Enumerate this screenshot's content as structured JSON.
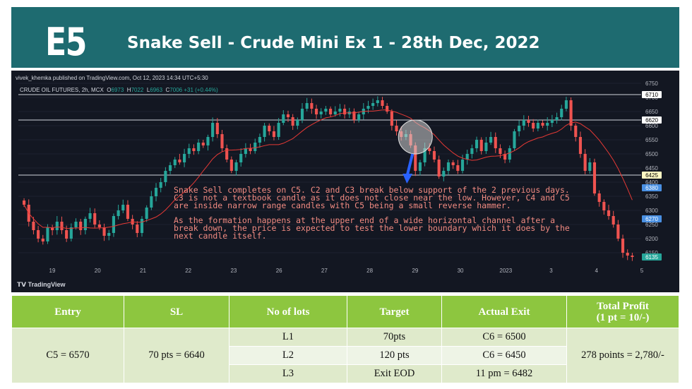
{
  "header": {
    "logo": "E5",
    "title": "Snake Sell - Crude Mini Ex 1 - 28th Dec, 2022"
  },
  "chart_header": {
    "published": "vivek_khemka published on TradingView.com, Oct 12, 2023 14:34 UTC+5:30",
    "symbol": "CRUDE OIL FUTURES, 2h, MCX",
    "o_label": "O",
    "o": "6973",
    "h_label": "H",
    "h": "7022",
    "l_label": "L",
    "l": "6963",
    "c_label": "C",
    "c": "7006",
    "change": "+31 (+0.44%)",
    "brand": "TradingView"
  },
  "annotation": {
    "p1": "Snake Sell completes on C5. C2 and C3 break below support of the 2 previous days. C3 is not a textbook candle as it does not close near the low. However, C4 and C5 are inside narrow range candles with C5 being a small reverse hammer.",
    "p2": "As the formation happens at the upper end of a wide horizontal channel after a break down, the price is expected to test the lower boundary which it does by the next candle itself."
  },
  "chart_data": {
    "type": "candlestick",
    "ylim": [
      6100,
      6770
    ],
    "x_ticks": [
      "19",
      "20",
      "21",
      "22",
      "23",
      "26",
      "27",
      "28",
      "29",
      "30",
      "2023",
      "3",
      "4",
      "5"
    ],
    "y_ticks": [
      6150,
      6200,
      6250,
      6300,
      6350,
      6400,
      6450,
      6500,
      6550,
      6600,
      6650,
      6700,
      6750
    ],
    "price_labels": [
      {
        "value": 6710,
        "text": "6710",
        "bg": "#ffffff",
        "fg": "#000000"
      },
      {
        "value": 6620,
        "text": "6620",
        "bg": "#ffffff",
        "fg": "#000000"
      },
      {
        "value": 6425,
        "text": "6425",
        "bg": "#fff9c4",
        "fg": "#000000"
      },
      {
        "value": 6380,
        "text": "6380",
        "bg": "#4a90e2",
        "fg": "#ffffff"
      },
      {
        "value": 6270,
        "text": "6270",
        "bg": "#4a90e2",
        "fg": "#ffffff"
      },
      {
        "value": 6135,
        "text": "6135",
        "bg": "#26a69a",
        "fg": "#ffffff"
      }
    ],
    "hlines": [
      6710,
      6620,
      6425
    ],
    "colors": {
      "up": "#26a69a",
      "down": "#ef5350",
      "ma": "#e53935",
      "hline": "#d1d4dc",
      "arrow": "#2962ff"
    },
    "closes": [
      6320,
      6260,
      6230,
      6200,
      6190,
      6240,
      6230,
      6260,
      6230,
      6200,
      6240,
      6260,
      6230,
      6270,
      6290,
      6250,
      6240,
      6210,
      6220,
      6280,
      6300,
      6320,
      6270,
      6250,
      6220,
      6270,
      6310,
      6350,
      6380,
      6400,
      6440,
      6460,
      6480,
      6470,
      6500,
      6520,
      6510,
      6540,
      6530,
      6560,
      6610,
      6570,
      6520,
      6480,
      6440,
      6470,
      6500,
      6520,
      6510,
      6540,
      6560,
      6600,
      6580,
      6560,
      6610,
      6640,
      6630,
      6600,
      6620,
      6660,
      6680,
      6660,
      6640,
      6650,
      6660,
      6640,
      6650,
      6660,
      6640,
      6650,
      6620,
      6640,
      6660,
      6670,
      6680,
      6690,
      6670,
      6650,
      6600,
      6580,
      6560,
      6570,
      6530,
      6440,
      6470,
      6520,
      6510,
      6480,
      6420,
      6440,
      6470,
      6460,
      6440,
      6480,
      6500,
      6520,
      6550,
      6510,
      6540,
      6560,
      6520,
      6500,
      6480,
      6520,
      6580,
      6600,
      6620,
      6610,
      6590,
      6610,
      6600,
      6610,
      6620,
      6630,
      6660,
      6690,
      6600,
      6560,
      6500,
      6440,
      6470,
      6360,
      6330,
      6300,
      6280,
      6250,
      6200,
      6150,
      6140,
      6135
    ]
  },
  "table": {
    "headers": [
      "Entry",
      "SL",
      "No of lots",
      "Target",
      "Actual Exit",
      "Total Profit",
      "(1 pt = 10/-)"
    ],
    "entry": "C5 = 6570",
    "sl": "70 pts = 6640",
    "rows": [
      {
        "lot": "L1",
        "target": "70pts",
        "exit": "C6 = 6500"
      },
      {
        "lot": "L2",
        "target": "120 pts",
        "exit": "C6 = 6450"
      },
      {
        "lot": "L3",
        "target": "Exit EOD",
        "exit": "11 pm  = 6482"
      }
    ],
    "profit": "278 points = 2,780/-"
  }
}
